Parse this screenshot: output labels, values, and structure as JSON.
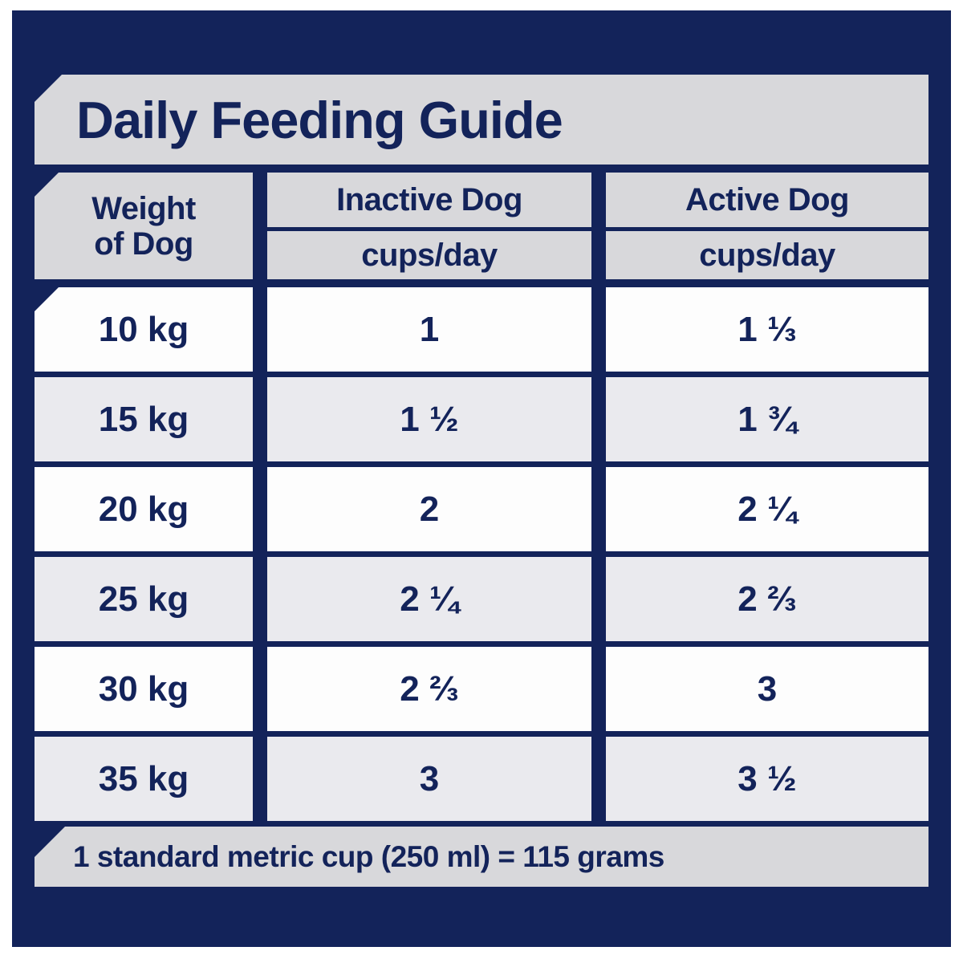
{
  "title": "Daily Feeding Guide",
  "table": {
    "weight_header": {
      "line1": "Weight",
      "line2": "of Dog"
    },
    "columns": [
      {
        "label": "Inactive Dog",
        "unit": "cups/day"
      },
      {
        "label": "Active Dog",
        "unit": "cups/day"
      }
    ],
    "rows": [
      {
        "weight": "10 kg",
        "inactive": "1",
        "active": "1 ⅓"
      },
      {
        "weight": "15 kg",
        "inactive": "1 ½",
        "active": "1 ¾"
      },
      {
        "weight": "20 kg",
        "inactive": "2",
        "active": "2 ¼"
      },
      {
        "weight": "25 kg",
        "inactive": "2 ¼",
        "active": "2 ⅔"
      },
      {
        "weight": "30 kg",
        "inactive": "2 ⅔",
        "active": "3"
      },
      {
        "weight": "35 kg",
        "inactive": "3",
        "active": "3 ½"
      }
    ],
    "note": "1 standard metric cup (250 ml) = 115 grams"
  },
  "colors": {
    "navy": "#13235a",
    "band_gray": "#d8d8db",
    "row_gray": "#eaeaee",
    "row_white": "#fdfdfd",
    "text": "#13235a",
    "page_border": "#ffffff"
  },
  "chart_data": {
    "type": "table",
    "title": "Daily Feeding Guide",
    "columns": [
      "Weight of Dog",
      "Inactive Dog cups/day",
      "Active Dog cups/day"
    ],
    "rows": [
      [
        "10 kg",
        "1",
        "1 ⅓"
      ],
      [
        "15 kg",
        "1 ½",
        "1 ¾"
      ],
      [
        "20 kg",
        "2",
        "2 ¼"
      ],
      [
        "25 kg",
        "2 ¼",
        "2 ⅔"
      ],
      [
        "30 kg",
        "2 ⅔",
        "3"
      ],
      [
        "35 kg",
        "3",
        "3 ½"
      ]
    ],
    "note": "1 standard metric cup (250 ml) = 115 grams",
    "layout_hints": {
      "alternating_row_shading": true,
      "chamfered_corners": "top-left of title, weight header, first row and note band",
      "background": "dark navy with light gray bands"
    }
  }
}
